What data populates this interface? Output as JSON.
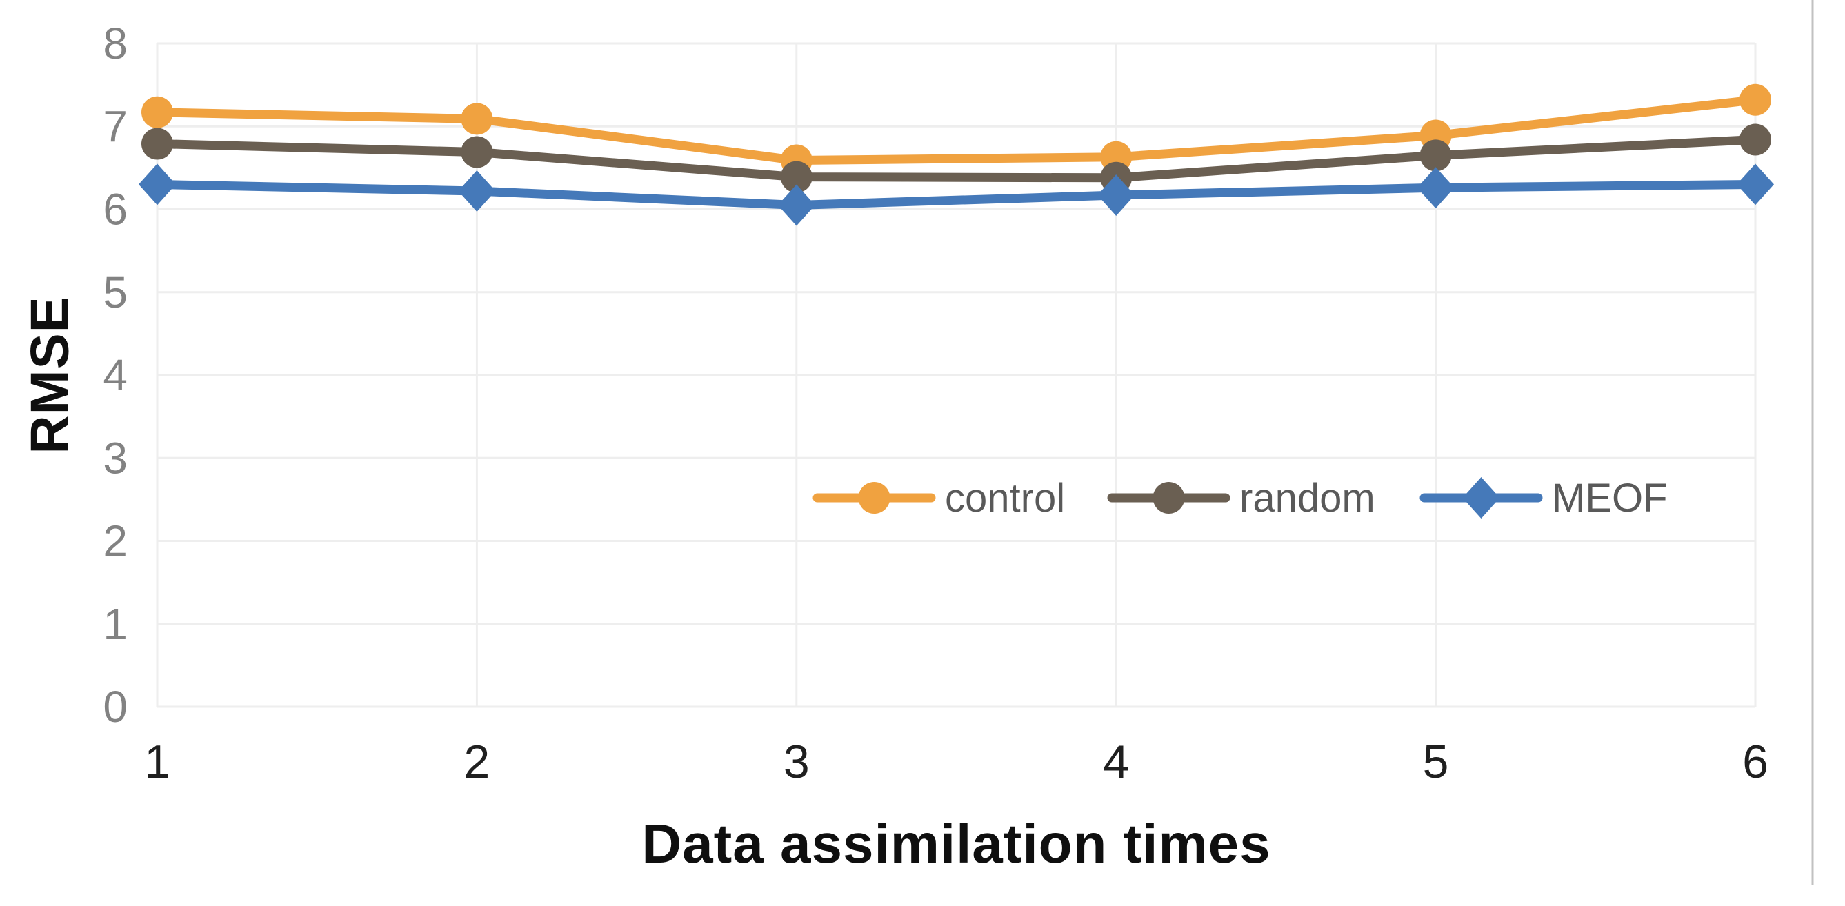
{
  "chart_data": {
    "type": "line",
    "title": "",
    "xlabel": "Data assimilation times",
    "ylabel": "RMSE",
    "x": [
      1,
      2,
      3,
      4,
      5,
      6
    ],
    "categories": [
      "1",
      "2",
      "3",
      "4",
      "5",
      "6"
    ],
    "ylim": [
      0,
      8
    ],
    "y_ticks": [
      0,
      1,
      2,
      3,
      4,
      5,
      6,
      7,
      8
    ],
    "grid": true,
    "legend_position": "inside-right-middle",
    "series": [
      {
        "name": "control",
        "marker": "circle",
        "color": "#F0A240",
        "values": [
          7.17,
          7.09,
          6.59,
          6.63,
          6.89,
          7.32
        ]
      },
      {
        "name": "random",
        "marker": "circle",
        "color": "#6A5F52",
        "values": [
          6.79,
          6.69,
          6.39,
          6.38,
          6.65,
          6.84
        ]
      },
      {
        "name": "MEOF",
        "marker": "diamond",
        "color": "#4579B9",
        "values": [
          6.3,
          6.22,
          6.05,
          6.17,
          6.26,
          6.3
        ]
      }
    ]
  },
  "style_colors": {
    "gridline": "#EEEEEE",
    "y_tick_label": "#828282",
    "x_tick_label": "#1F1F1F",
    "legend_text": "#595959",
    "page_border_line": "#C1C1C1"
  }
}
